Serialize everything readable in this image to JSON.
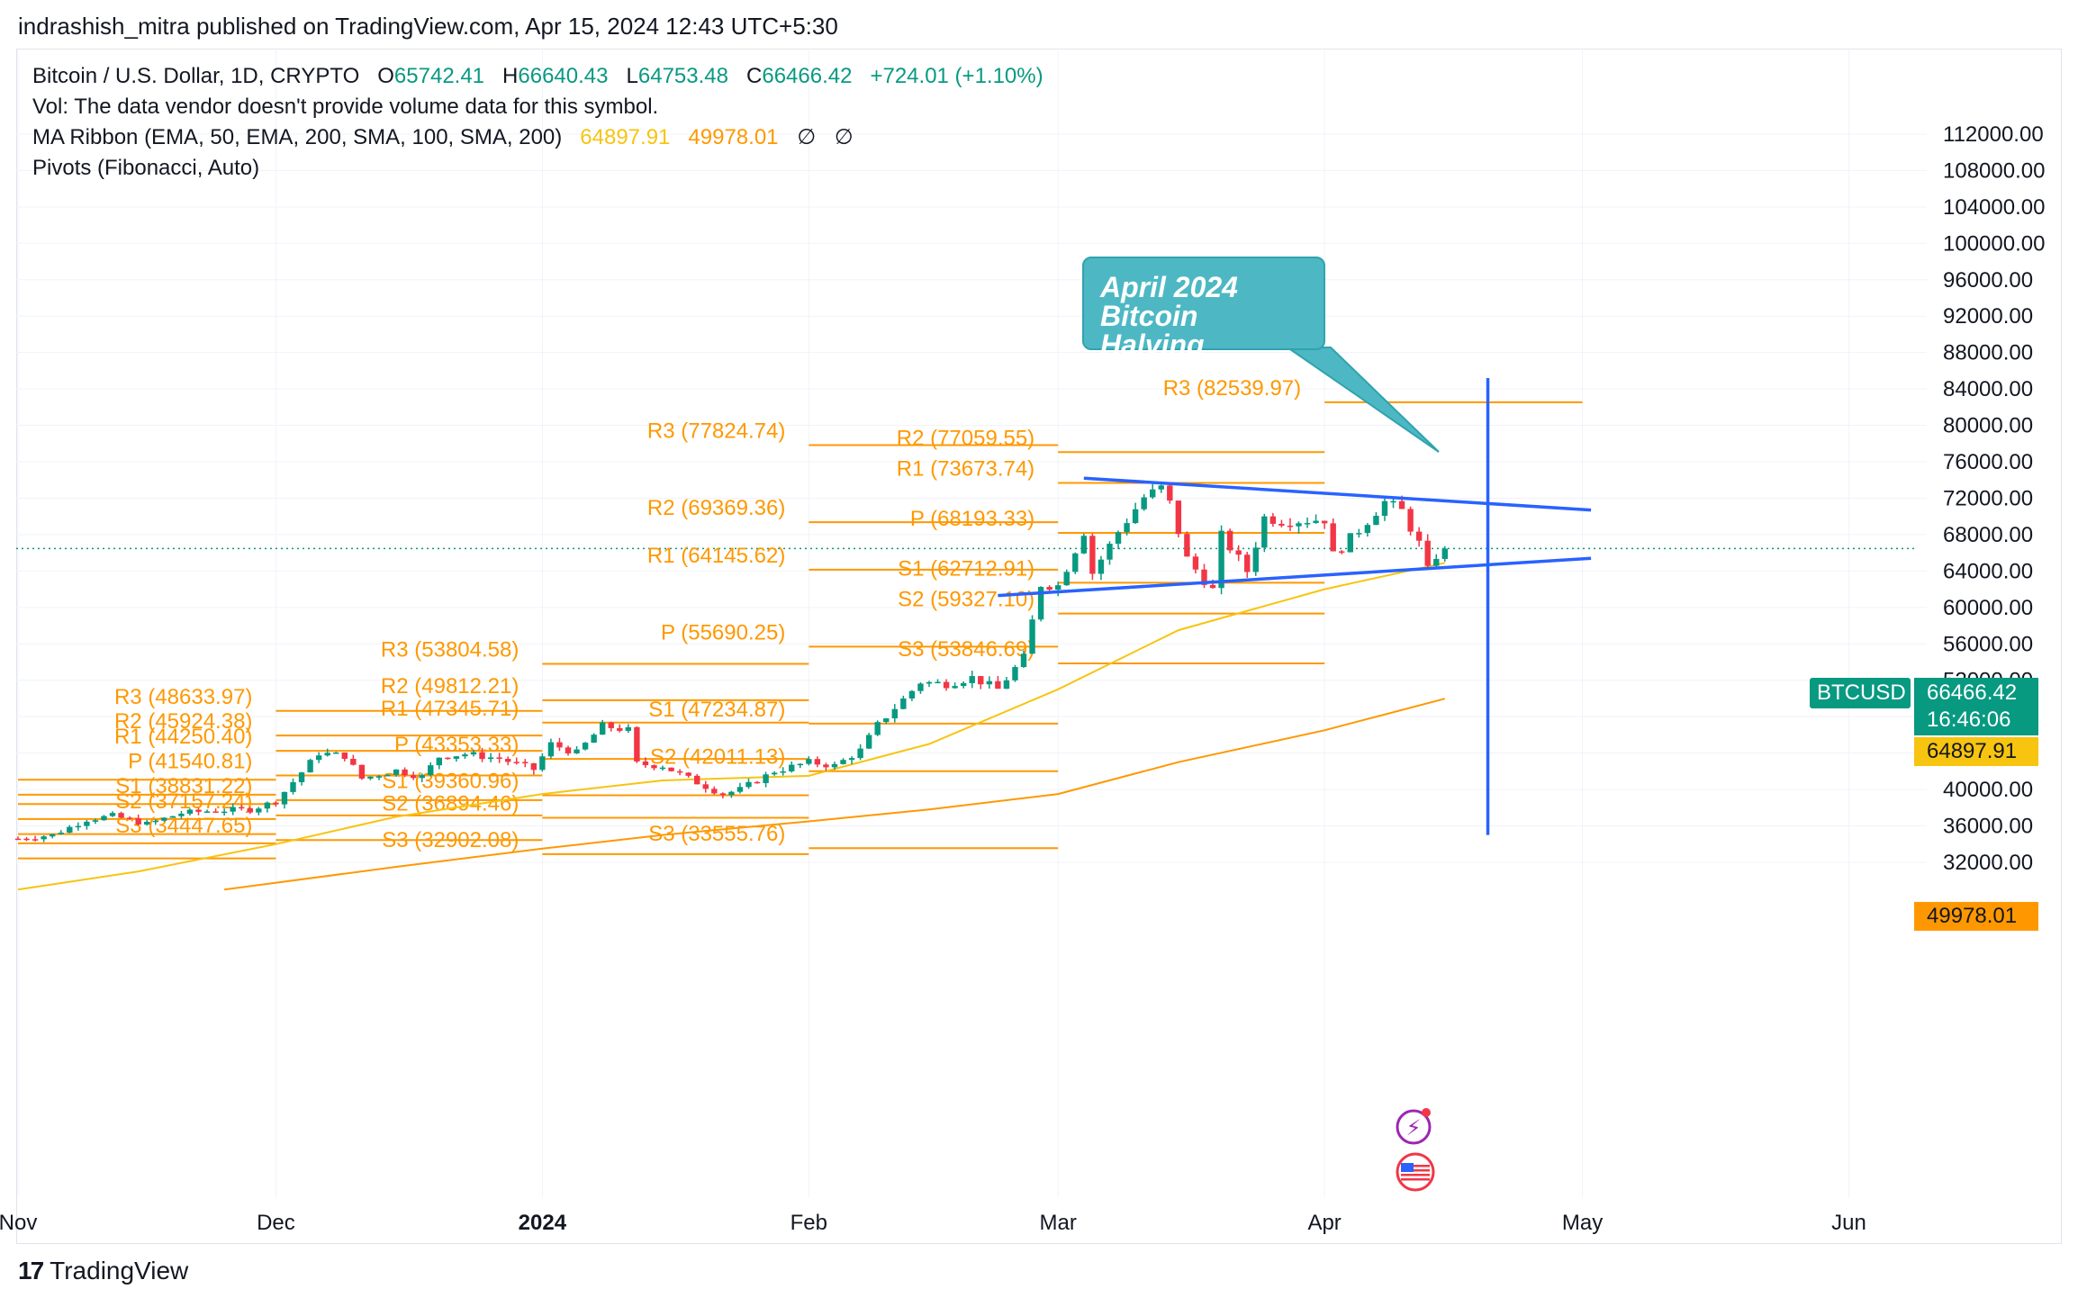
{
  "header": {
    "text": "indrashish_mitra published on TradingView.com, Apr 15, 2024 12:43 UTC+5:30"
  },
  "legend": {
    "symbol": "Bitcoin / U.S. Dollar, 1D, CRYPTO",
    "o_label": "O",
    "o_value": "65742.41",
    "h_label": "H",
    "h_value": "66640.43",
    "l_label": "L",
    "l_value": "64753.48",
    "c_label": "C",
    "c_value": "66466.42",
    "change": "+724.01 (+1.10%)",
    "vol": "Vol: The data vendor doesn't provide volume data for this symbol.",
    "ma_label": "MA Ribbon (EMA, 50, EMA, 200, SMA, 100, SMA, 200)",
    "ma_val1": "64897.91",
    "ma_val2": "49978.01",
    "ma_na1": "∅",
    "ma_na2": "∅",
    "pivots": "Pivots (Fibonacci, Auto)"
  },
  "callout": {
    "line1": "April 2024",
    "line2": "Bitcoin Halving"
  },
  "price_badges": {
    "symbol": "BTCUSD",
    "price": "66466.42",
    "countdown": "16:46:06",
    "ma50": "64897.91",
    "ma200": "49978.01"
  },
  "footer": {
    "brand": "TradingView",
    "logo": "17"
  },
  "colors": {
    "up": "#089981",
    "down": "#f23645",
    "pivot": "#ff9800",
    "ema50": "#f7c40f",
    "ema200": "#ff9800",
    "trend": "#2962ff",
    "callout": "#4db8c4"
  },
  "chart_data": {
    "type": "candlestick",
    "ylim": [
      29000,
      115000
    ],
    "xlim": [
      "2023-11-01",
      "2024-06-15"
    ],
    "y_ticks": [
      "112000.00",
      "108000.00",
      "104000.00",
      "100000.00",
      "96000.00",
      "92000.00",
      "88000.00",
      "84000.00",
      "80000.00",
      "76000.00",
      "72000.00",
      "68000.00",
      "64000.00",
      "60000.00",
      "56000.00",
      "52000.00",
      "48000.00",
      "44000.00",
      "40000.00",
      "36000.00",
      "32000.00"
    ],
    "x_ticks": [
      {
        "label": "Nov",
        "date": "2023-11-01",
        "bold": false
      },
      {
        "label": "Dec",
        "date": "2023-12-01",
        "bold": false
      },
      {
        "label": "2024",
        "date": "2024-01-01",
        "bold": true
      },
      {
        "label": "Feb",
        "date": "2024-02-01",
        "bold": false
      },
      {
        "label": "Mar",
        "date": "2024-03-01",
        "bold": false
      },
      {
        "label": "Apr",
        "date": "2024-04-01",
        "bold": false
      },
      {
        "label": "May",
        "date": "2024-05-01",
        "bold": false
      },
      {
        "label": "Jun",
        "date": "2024-06-01",
        "bold": false
      }
    ],
    "ohlc_anchors": [
      [
        "2023-11-01",
        34600
      ],
      [
        "2023-11-05",
        35000
      ],
      [
        "2023-11-09",
        36700
      ],
      [
        "2023-11-12",
        37100
      ],
      [
        "2023-11-16",
        36200
      ],
      [
        "2023-11-20",
        37400
      ],
      [
        "2023-11-24",
        37700
      ],
      [
        "2023-11-28",
        37800
      ],
      [
        "2023-12-01",
        38700
      ],
      [
        "2023-12-04",
        41900
      ],
      [
        "2023-12-06",
        44000
      ],
      [
        "2023-12-09",
        43700
      ],
      [
        "2023-12-11",
        41200
      ],
      [
        "2023-12-15",
        42100
      ],
      [
        "2023-12-18",
        41400
      ],
      [
        "2023-12-20",
        43600
      ],
      [
        "2023-12-23",
        43900
      ],
      [
        "2023-12-27",
        43400
      ],
      [
        "2023-12-31",
        42200
      ],
      [
        "2024-01-02",
        45000
      ],
      [
        "2024-01-05",
        44000
      ],
      [
        "2024-01-08",
        47000
      ],
      [
        "2024-01-11",
        46500
      ],
      [
        "2024-01-12",
        42800
      ],
      [
        "2024-01-15",
        42600
      ],
      [
        "2024-01-18",
        41200
      ],
      [
        "2024-01-22",
        39500
      ],
      [
        "2024-01-24",
        40000
      ],
      [
        "2024-01-28",
        42000
      ],
      [
        "2024-02-01",
        43000
      ],
      [
        "2024-02-04",
        42600
      ],
      [
        "2024-02-07",
        44300
      ],
      [
        "2024-02-09",
        47100
      ],
      [
        "2024-02-12",
        49900
      ],
      [
        "2024-02-14",
        51800
      ],
      [
        "2024-02-17",
        51600
      ],
      [
        "2024-02-20",
        52300
      ],
      [
        "2024-02-23",
        51000
      ],
      [
        "2024-02-26",
        54500
      ],
      [
        "2024-02-28",
        62500
      ],
      [
        "2024-03-01",
        62400
      ],
      [
        "2024-03-04",
        68300
      ],
      [
        "2024-03-05",
        63800
      ],
      [
        "2024-03-08",
        68300
      ],
      [
        "2024-03-11",
        72100
      ],
      [
        "2024-03-13",
        73100
      ],
      [
        "2024-03-14",
        71400
      ],
      [
        "2024-03-16",
        65300
      ],
      [
        "2024-03-19",
        61900
      ],
      [
        "2024-03-20",
        67900
      ],
      [
        "2024-03-23",
        64000
      ],
      [
        "2024-03-25",
        69900
      ],
      [
        "2024-03-27",
        69500
      ],
      [
        "2024-03-30",
        69600
      ],
      [
        "2024-04-01",
        69700
      ],
      [
        "2024-04-02",
        65700
      ],
      [
        "2024-04-05",
        68500
      ],
      [
        "2024-04-08",
        71600
      ],
      [
        "2024-04-10",
        70600
      ],
      [
        "2024-04-12",
        67000
      ],
      [
        "2024-04-13",
        64000
      ],
      [
        "2024-04-14",
        65700
      ],
      [
        "2024-04-15",
        66466
      ]
    ],
    "series": [
      {
        "name": "EMA 50",
        "values": [
          [
            "2023-11-01",
            29000
          ],
          [
            "2023-11-15",
            31000
          ],
          [
            "2023-12-01",
            34000
          ],
          [
            "2023-12-15",
            37000
          ],
          [
            "2024-01-01",
            39500
          ],
          [
            "2024-01-15",
            41000
          ],
          [
            "2024-02-01",
            41500
          ],
          [
            "2024-02-15",
            45000
          ],
          [
            "2024-03-01",
            51000
          ],
          [
            "2024-03-15",
            57500
          ],
          [
            "2024-04-01",
            62000
          ],
          [
            "2024-04-15",
            64898
          ]
        ]
      },
      {
        "name": "EMA 200",
        "values": [
          [
            "2023-11-25",
            29000
          ],
          [
            "2023-12-15",
            31500
          ],
          [
            "2024-01-01",
            33500
          ],
          [
            "2024-01-15",
            35000
          ],
          [
            "2024-02-01",
            36500
          ],
          [
            "2024-02-15",
            37800
          ],
          [
            "2024-03-01",
            39500
          ],
          [
            "2024-03-15",
            43000
          ],
          [
            "2024-04-01",
            46500
          ],
          [
            "2024-04-15",
            49978
          ]
        ]
      }
    ],
    "pivots": [
      {
        "start": "2023-11-01",
        "end": "2023-12-01",
        "levels": [
          {
            "name": "R3",
            "value": "41075.30",
            "y": 41075
          },
          {
            "name": "R2",
            "value": "39424.33",
            "y": 39424
          },
          {
            "name": "R1",
            "value": "38404.36",
            "y": 38404
          },
          {
            "name": "P",
            "value": "36753.38",
            "y": 36753,
            "label": "P"
          },
          {
            "name": "S1",
            "value": "35102.41",
            "y": 35102
          },
          {
            "name": "S2",
            "value": "34082.44",
            "y": 34082
          },
          {
            "name": "S3",
            "value": "32431.46",
            "y": 32431
          }
        ]
      },
      {
        "start": "2023-12-01",
        "end": "2024-01-01",
        "levels": [
          {
            "name": "R3",
            "value": "48633.97",
            "y": 48634
          },
          {
            "name": "R2",
            "value": "45924.38",
            "y": 45924
          },
          {
            "name": "R1",
            "value": "44250.40",
            "y": 44250
          },
          {
            "name": "P",
            "value": "41540.81",
            "y": 41541,
            "label": "P"
          },
          {
            "name": "S1",
            "value": "38831.22",
            "y": 38831
          },
          {
            "name": "S2",
            "value": "37157.24",
            "y": 37157
          },
          {
            "name": "S3",
            "value": "34447.65",
            "y": 34448
          }
        ]
      },
      {
        "start": "2024-01-01",
        "end": "2024-02-01",
        "levels": [
          {
            "name": "R3",
            "value": "53804.58",
            "y": 53805
          },
          {
            "name": "R2",
            "value": "49812.21",
            "y": 49812
          },
          {
            "name": "R1",
            "value": "47345.71",
            "y": 47346
          },
          {
            "name": "P",
            "value": "43353.33",
            "y": 43353,
            "label": "P"
          },
          {
            "name": "S1",
            "value": "39360.96",
            "y": 39361
          },
          {
            "name": "S2",
            "value": "36894.46",
            "y": 36894
          },
          {
            "name": "S3",
            "value": "32902.08",
            "y": 32902
          }
        ]
      },
      {
        "start": "2024-02-01",
        "end": "2024-03-01",
        "levels": [
          {
            "name": "R3",
            "value": "77824.74",
            "y": 77825
          },
          {
            "name": "R2",
            "value": "69369.36",
            "y": 69369
          },
          {
            "name": "R1",
            "value": "64145.62",
            "y": 64146
          },
          {
            "name": "P",
            "value": "55690.25",
            "y": 55690
          },
          {
            "name": "S1",
            "value": "47234.87",
            "y": 47235
          },
          {
            "name": "S2",
            "value": "42011.13",
            "y": 42011
          },
          {
            "name": "S3",
            "value": "33555.76",
            "y": 33556
          }
        ]
      },
      {
        "start": "2024-03-01",
        "end": "2024-04-01",
        "levels": [
          {
            "name": "R2",
            "value": "77059.55",
            "y": 77060
          },
          {
            "name": "R1",
            "value": "73673.74",
            "y": 73674
          },
          {
            "name": "P",
            "value": "68193.33",
            "y": 68193
          },
          {
            "name": "S1",
            "value": "62712.91",
            "y": 62713
          },
          {
            "name": "S2",
            "value": "59327.10",
            "y": 59327
          },
          {
            "name": "S3",
            "value": "53846.69",
            "y": 53847
          }
        ]
      },
      {
        "start": "2024-04-01",
        "end": "2024-05-01",
        "levels": [
          {
            "name": "R3",
            "value": "82539.97",
            "y": 82540
          }
        ]
      }
    ],
    "trendlines": [
      {
        "from": [
          "2024-03-04",
          74200
        ],
        "to": [
          "2024-05-02",
          70700
        ]
      },
      {
        "from": [
          "2024-02-23",
          61300
        ],
        "to": [
          "2024-05-02",
          65400
        ]
      }
    ],
    "halving": {
      "date": "2024-04-20",
      "ymin": 35000,
      "ymax": 85200
    }
  }
}
